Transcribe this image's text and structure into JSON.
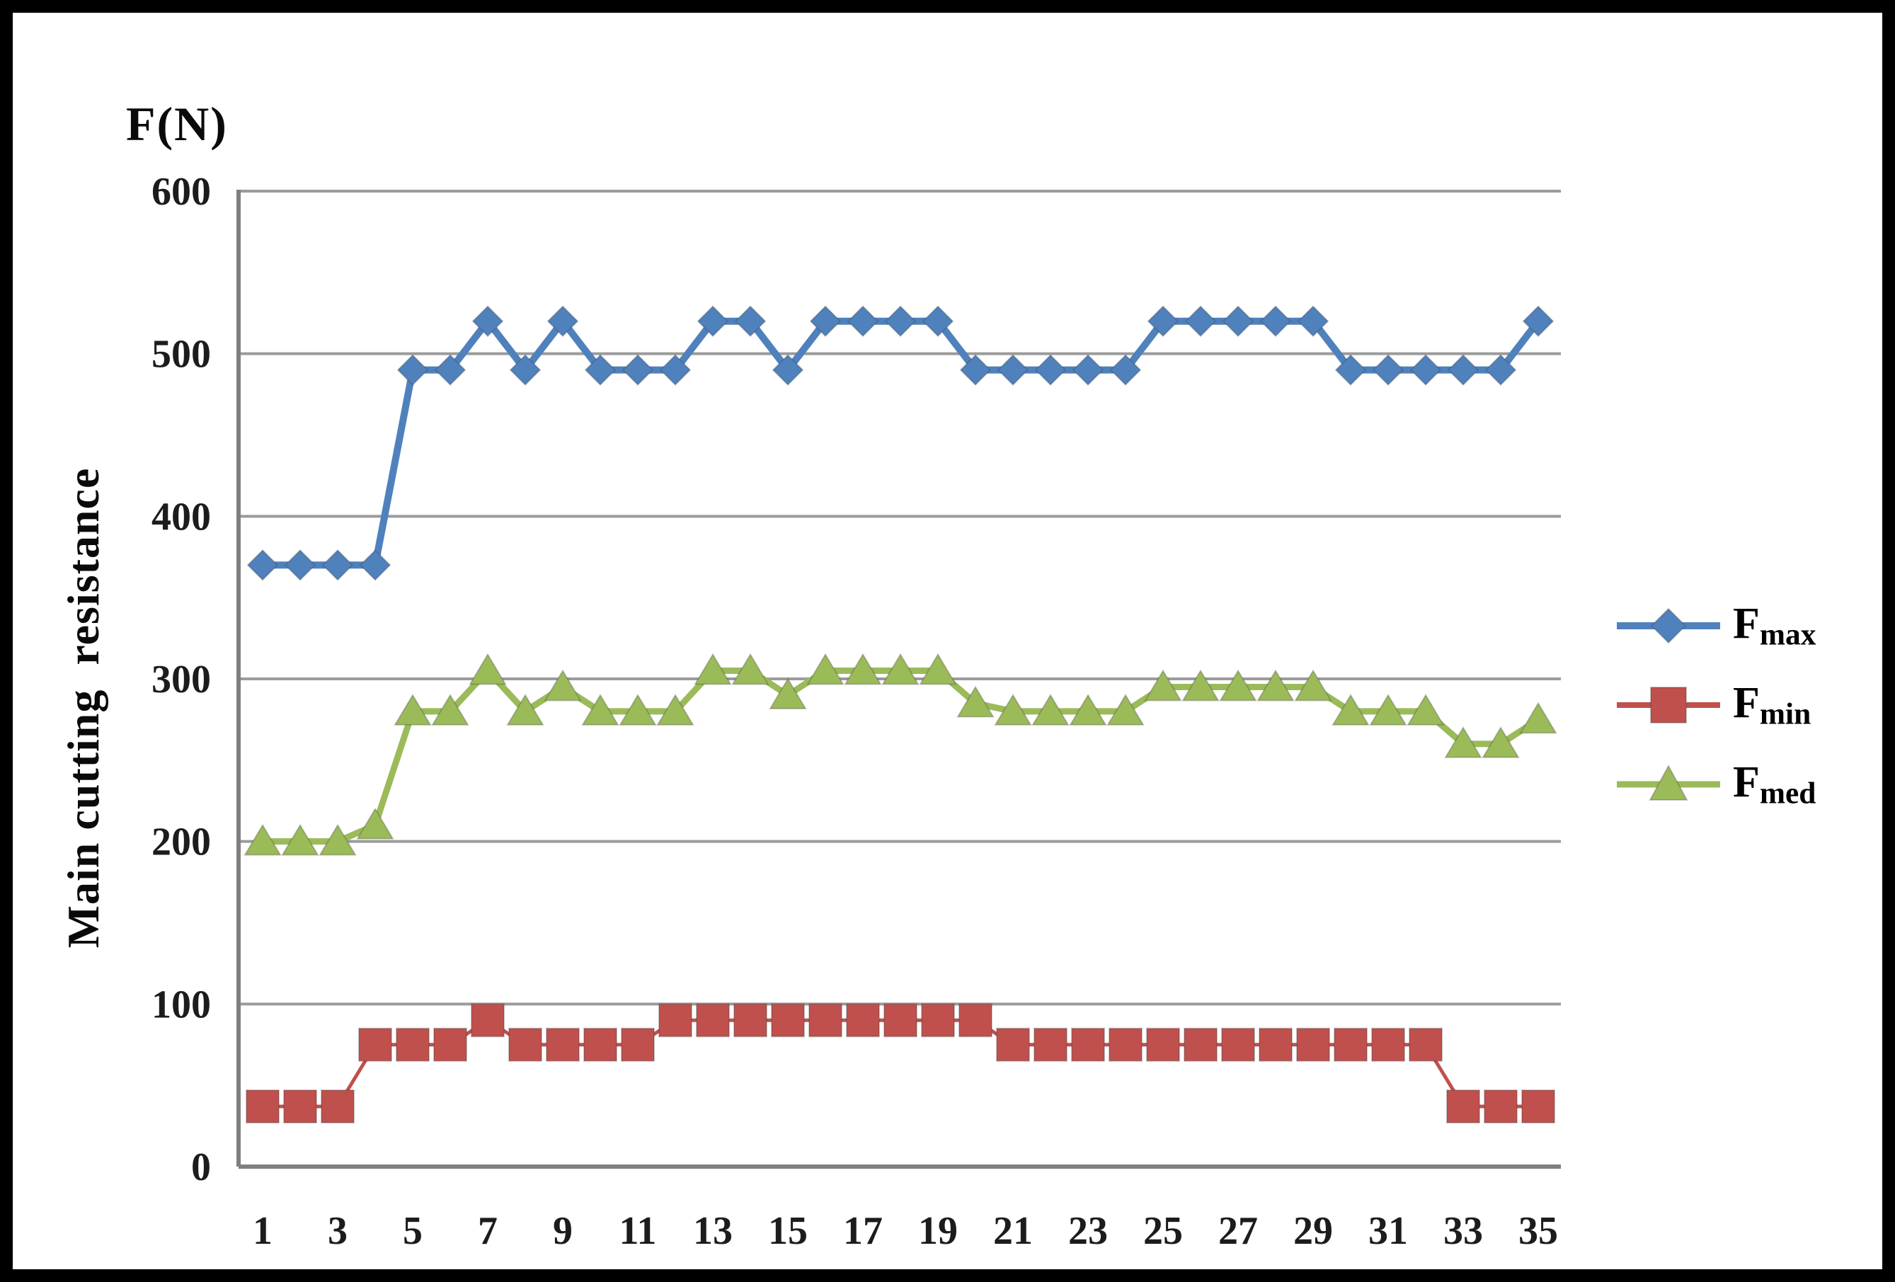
{
  "figure": {
    "title": "F(N)",
    "y_axis_title": "Main cutting  resistance"
  },
  "legend": {
    "position": "right",
    "items": [
      {
        "base": "F",
        "sub": "max",
        "marker": "diamond",
        "color": "#4F81BD"
      },
      {
        "base": "F",
        "sub": "min",
        "marker": "square",
        "color": "#C0504D"
      },
      {
        "base": "F",
        "sub": "med",
        "marker": "triangle",
        "color": "#9BBB59"
      }
    ]
  },
  "chart_data": {
    "type": "line",
    "title": "F(N)",
    "xlabel": "",
    "ylabel": "Main cutting resistance",
    "ylim": [
      0,
      600
    ],
    "y_ticks": [
      0,
      100,
      200,
      300,
      400,
      500,
      600
    ],
    "x": [
      1,
      2,
      3,
      4,
      5,
      6,
      7,
      8,
      9,
      10,
      11,
      12,
      13,
      14,
      15,
      16,
      17,
      18,
      19,
      20,
      21,
      22,
      23,
      24,
      25,
      26,
      27,
      28,
      29,
      30,
      31,
      32,
      33,
      34,
      35
    ],
    "x_tick_labels": [
      1,
      3,
      5,
      7,
      9,
      11,
      13,
      15,
      17,
      19,
      21,
      23,
      25,
      27,
      29,
      31,
      33,
      35
    ],
    "grid": true,
    "legend_position": "right",
    "series": [
      {
        "name": "Fmax",
        "marker": "diamond",
        "color": "#4F81BD",
        "values": [
          370,
          370,
          370,
          370,
          490,
          490,
          520,
          490,
          520,
          490,
          490,
          490,
          520,
          520,
          490,
          520,
          520,
          520,
          520,
          490,
          490,
          490,
          490,
          490,
          520,
          520,
          520,
          520,
          520,
          490,
          490,
          490,
          490,
          490,
          520
        ]
      },
      {
        "name": "Fmin",
        "marker": "square",
        "color": "#C0504D",
        "values": [
          37,
          37,
          37,
          75,
          75,
          75,
          90,
          75,
          75,
          75,
          75,
          90,
          90,
          90,
          90,
          90,
          90,
          90,
          90,
          90,
          75,
          75,
          75,
          75,
          75,
          75,
          75,
          75,
          75,
          75,
          75,
          75,
          37,
          37,
          37
        ]
      },
      {
        "name": "Fmed",
        "marker": "triangle",
        "color": "#9BBB59",
        "values": [
          200,
          200,
          200,
          210,
          280,
          280,
          305,
          280,
          295,
          280,
          280,
          280,
          305,
          305,
          290,
          305,
          305,
          305,
          305,
          285,
          280,
          280,
          280,
          280,
          295,
          295,
          295,
          295,
          295,
          280,
          280,
          280,
          260,
          260,
          275
        ]
      }
    ]
  },
  "colors": {
    "gridline": "#9B9B9B",
    "axis": "#7F7F7F",
    "tick_text": "#1c1c1c",
    "border": "#000000",
    "background": "#FFFFFF"
  }
}
